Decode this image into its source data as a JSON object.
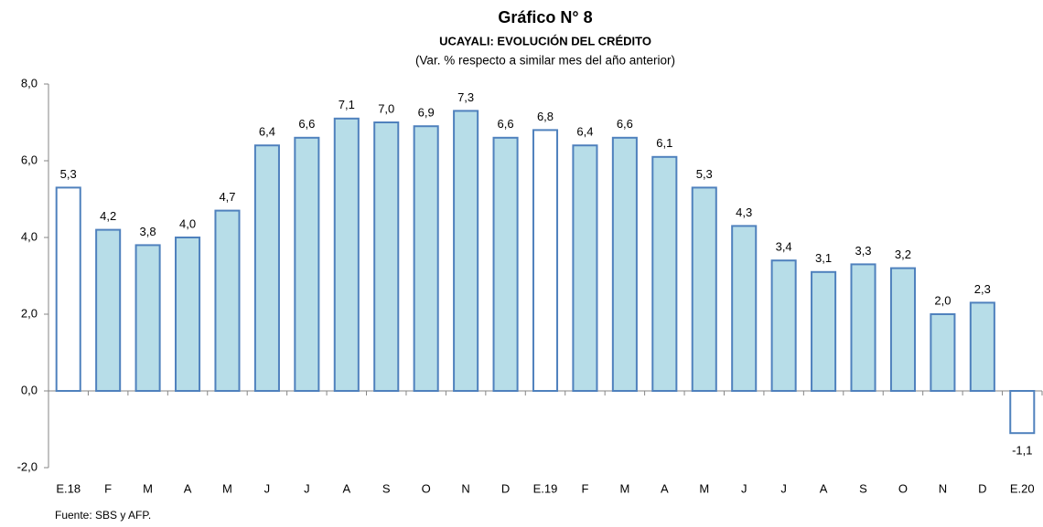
{
  "chart_data": {
    "type": "bar",
    "title": "Gráfico N° 8",
    "subtitle": "UCAYALI: EVOLUCIÓN DEL CRÉDITO",
    "note": "(Var. % respecto a similar mes del año anterior)",
    "source": "Fuente: SBS y AFP.",
    "categories": [
      "E.18",
      "F",
      "M",
      "A",
      "M",
      "J",
      "J",
      "A",
      "S",
      "O",
      "N",
      "D",
      "E.19",
      "F",
      "M",
      "A",
      "M",
      "J",
      "J",
      "A",
      "S",
      "O",
      "N",
      "D",
      "E.20"
    ],
    "values": [
      5.3,
      4.2,
      3.8,
      4.0,
      4.7,
      6.4,
      6.6,
      7.1,
      7.0,
      6.9,
      7.3,
      6.6,
      6.8,
      6.4,
      6.6,
      6.1,
      5.3,
      4.3,
      3.4,
      3.1,
      3.3,
      3.2,
      2.0,
      2.3,
      -1.1
    ],
    "value_labels": [
      "5,3",
      "4,2",
      "3,8",
      "4,0",
      "4,7",
      "6,4",
      "6,6",
      "7,1",
      "7,0",
      "6,9",
      "7,3",
      "6,6",
      "6,8",
      "6,4",
      "6,6",
      "6,1",
      "5,3",
      "4,3",
      "3,4",
      "3,1",
      "3,3",
      "3,2",
      "2,0",
      "2,3",
      "-1,1"
    ],
    "colors": [
      "#ffffff",
      "#b7dde8",
      "#b7dde8",
      "#b7dde8",
      "#b7dde8",
      "#b7dde8",
      "#b7dde8",
      "#b7dde8",
      "#b7dde8",
      "#b7dde8",
      "#b7dde8",
      "#b7dde8",
      "#ffffff",
      "#b7dde8",
      "#b7dde8",
      "#b7dde8",
      "#b7dde8",
      "#b7dde8",
      "#b7dde8",
      "#b7dde8",
      "#b7dde8",
      "#b7dde8",
      "#b7dde8",
      "#b7dde8",
      "#ffffff"
    ],
    "edge_color": "#4f81bd",
    "ylim": [
      -2,
      8
    ],
    "yticks": [
      {
        "value": -2,
        "label": "-2,0"
      },
      {
        "value": 0,
        "label": "0,0"
      },
      {
        "value": 2,
        "label": "2,0"
      },
      {
        "value": 4,
        "label": "4,0"
      },
      {
        "value": 6,
        "label": "6,0"
      },
      {
        "value": 8,
        "label": "8,0"
      }
    ],
    "grid": false
  }
}
